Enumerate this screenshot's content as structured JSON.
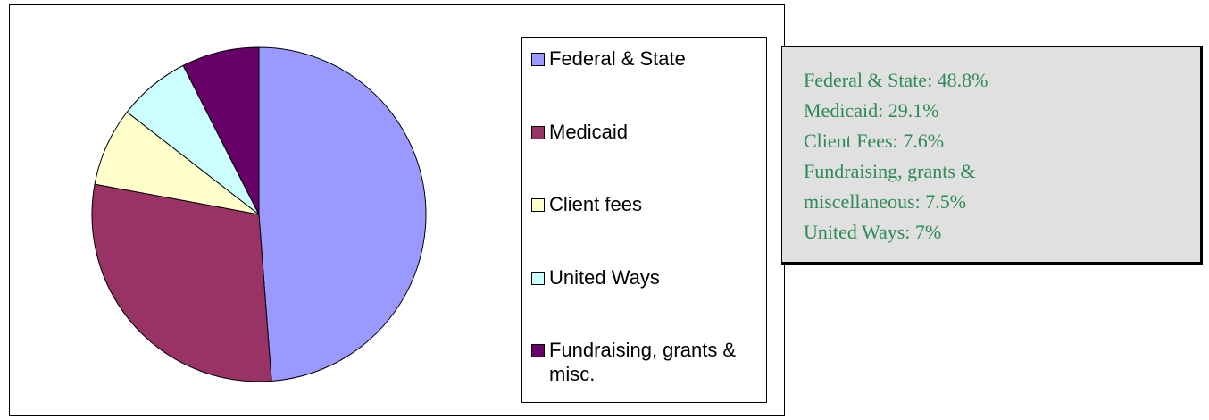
{
  "chart_data": {
    "type": "pie",
    "categories": [
      "Federal & State",
      "Medicaid",
      "Client fees",
      "United Ways",
      "Fundraising, grants & misc."
    ],
    "values": [
      48.8,
      29.1,
      7.6,
      7,
      7.5
    ],
    "colors": [
      "#9999ff",
      "#993366",
      "#ffffcc",
      "#ccffff",
      "#660066"
    ],
    "annotations": [
      "Federal & State:  48.8%",
      "Medicaid:  29.1%",
      "Client Fees:  7.6%",
      "Fundraising, grants & miscellaneous:  7.5%",
      "United Ways:  7%"
    ]
  }
}
